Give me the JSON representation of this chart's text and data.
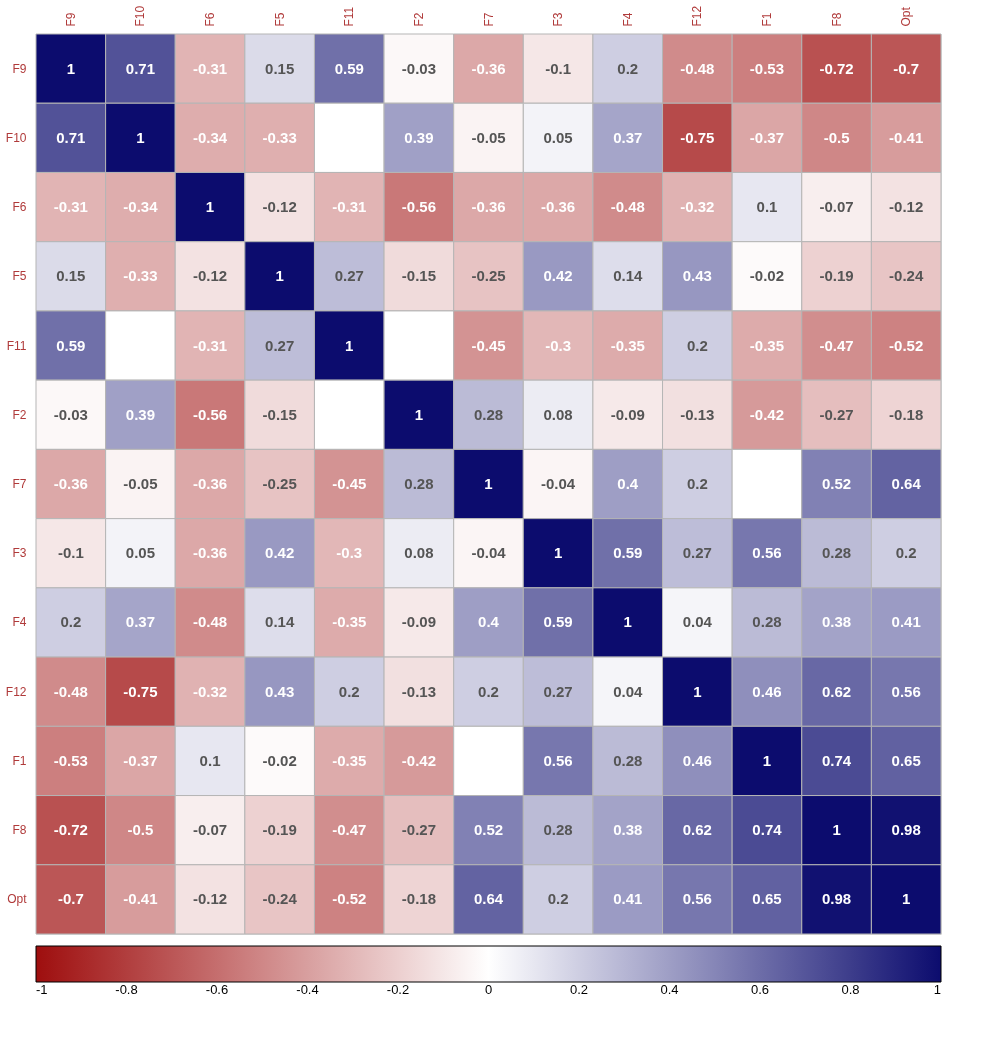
{
  "chart_data": {
    "type": "heatmap",
    "categories": [
      "F9",
      "F10",
      "F6",
      "F5",
      "F11",
      "F2",
      "F7",
      "F3",
      "F4",
      "F12",
      "F1",
      "F8",
      "Opt"
    ],
    "y_categories": [
      "F9",
      "F10",
      "F6",
      "F5",
      "F11",
      "F2",
      "F7",
      "F3",
      "F4",
      "F12",
      "F1",
      "F8",
      "Opt"
    ],
    "cells": [
      [
        1,
        0.71,
        -0.31,
        0.15,
        0.59,
        -0.03,
        -0.36,
        -0.1,
        0.2,
        -0.48,
        -0.53,
        -0.72,
        -0.7
      ],
      [
        0.71,
        1,
        -0.34,
        -0.33,
        0,
        0.39,
        -0.05,
        0.05,
        0.37,
        -0.75,
        -0.37,
        -0.5,
        -0.41
      ],
      [
        -0.31,
        -0.34,
        1,
        -0.12,
        -0.31,
        -0.56,
        -0.36,
        -0.36,
        -0.48,
        -0.32,
        0.1,
        -0.07,
        -0.12
      ],
      [
        0.15,
        -0.33,
        -0.12,
        1,
        0.27,
        -0.15,
        -0.25,
        0.42,
        0.14,
        0.43,
        -0.02,
        -0.19,
        -0.24
      ],
      [
        0.59,
        0,
        -0.31,
        0.27,
        1,
        0,
        -0.45,
        -0.3,
        -0.35,
        0.2,
        -0.35,
        -0.47,
        -0.52
      ],
      [
        -0.03,
        0.39,
        -0.56,
        -0.15,
        0,
        1,
        0.28,
        0.08,
        -0.09,
        -0.13,
        -0.42,
        -0.27,
        -0.18
      ],
      [
        -0.36,
        -0.05,
        -0.36,
        -0.25,
        -0.45,
        0.28,
        1,
        -0.04,
        0.4,
        0.2,
        0,
        0.52,
        0.64
      ],
      [
        -0.1,
        0.05,
        -0.36,
        0.42,
        -0.3,
        0.08,
        -0.04,
        1,
        0.59,
        0.27,
        0.56,
        0.28,
        0.2
      ],
      [
        0.2,
        0.37,
        -0.48,
        0.14,
        -0.35,
        -0.09,
        0.4,
        0.59,
        1,
        0.04,
        0.28,
        0.38,
        0.41
      ],
      [
        -0.48,
        -0.75,
        -0.32,
        0.43,
        0.2,
        -0.13,
        0.2,
        0.27,
        0.04,
        1,
        0.46,
        0.62,
        0.56
      ],
      [
        -0.53,
        -0.37,
        0.1,
        -0.02,
        -0.35,
        -0.42,
        0,
        0.56,
        0.28,
        0.46,
        1,
        0.74,
        0.65
      ],
      [
        -0.72,
        -0.5,
        -0.07,
        -0.19,
        -0.47,
        -0.27,
        0.52,
        0.28,
        0.38,
        0.62,
        0.74,
        1,
        0.98
      ],
      [
        -0.7,
        -0.41,
        -0.12,
        -0.24,
        -0.52,
        -0.18,
        0.64,
        0.2,
        0.41,
        0.56,
        0.65,
        0.98,
        1
      ]
    ],
    "cell_labels": [
      [
        "1",
        "0.71",
        "-0.31",
        "0.15",
        "0.59",
        "-0.03",
        "-0.36",
        "-0.1",
        "0.2",
        "-0.48",
        "-0.53",
        "-0.72",
        "-0.7"
      ],
      [
        "0.71",
        "1",
        "-0.34",
        "-0.33",
        null,
        "0.39",
        "-0.05",
        "0.05",
        "0.37",
        "-0.75",
        "-0.37",
        "-0.5",
        "-0.41"
      ],
      [
        "-0.31",
        "-0.34",
        "1",
        "-0.12",
        "-0.31",
        "-0.56",
        "-0.36",
        "-0.36",
        "-0.48",
        "-0.32",
        "0.1",
        "-0.07",
        "-0.12"
      ],
      [
        "0.15",
        "-0.33",
        "-0.12",
        "1",
        "0.27",
        "-0.15",
        "-0.25",
        "0.42",
        "0.14",
        "0.43",
        "-0.02",
        "-0.19",
        "-0.24"
      ],
      [
        "0.59",
        null,
        "-0.31",
        "0.27",
        "1",
        null,
        "-0.45",
        "-0.3",
        "-0.35",
        "0.2",
        "-0.35",
        "-0.47",
        "-0.52"
      ],
      [
        "-0.03",
        "0.39",
        "-0.56",
        "-0.15",
        null,
        "1",
        "0.28",
        "0.08",
        "-0.09",
        "-0.13",
        "-0.42",
        "-0.27",
        "-0.18"
      ],
      [
        "-0.36",
        "-0.05",
        "-0.36",
        "-0.25",
        "-0.45",
        "0.28",
        "1",
        "-0.04",
        "0.4",
        "0.2",
        null,
        "0.52",
        "0.64"
      ],
      [
        "-0.1",
        "0.05",
        "-0.36",
        "0.42",
        "-0.3",
        "0.08",
        "-0.04",
        "1",
        "0.59",
        "0.27",
        "0.56",
        "0.28",
        "0.2"
      ],
      [
        "0.2",
        "0.37",
        "-0.48",
        "0.14",
        "-0.35",
        "-0.09",
        "0.4",
        "0.59",
        "1",
        "0.04",
        "0.28",
        "0.38",
        "0.41"
      ],
      [
        "-0.48",
        "-0.75",
        "-0.32",
        "0.43",
        "0.2",
        "-0.13",
        "0.2",
        "0.27",
        "0.04",
        "1",
        "0.46",
        "0.62",
        "0.56"
      ],
      [
        "-0.53",
        "-0.37",
        "0.1",
        "-0.02",
        "-0.35",
        "-0.42",
        null,
        "0.56",
        "0.28",
        "0.46",
        "1",
        "0.74",
        "0.65"
      ],
      [
        "-0.72",
        "-0.5",
        "-0.07",
        "-0.19",
        "-0.47",
        "-0.27",
        "0.52",
        "0.28",
        "0.38",
        "0.62",
        "0.74",
        "1",
        "0.98"
      ],
      [
        "-0.7",
        "-0.41",
        "-0.12",
        "-0.24",
        "-0.52",
        "-0.18",
        "0.64",
        "0.2",
        "0.41",
        "0.56",
        "0.65",
        "0.98",
        "1"
      ]
    ],
    "colors": [
      "#9e0e0e",
      "#ffffff",
      "#0c0c6e"
    ],
    "clim": [
      -1,
      1
    ],
    "cticks": [
      -1,
      -0.8,
      -0.6,
      -0.4,
      -0.2,
      0,
      0.2,
      0.4,
      0.6,
      0.8,
      1
    ]
  }
}
